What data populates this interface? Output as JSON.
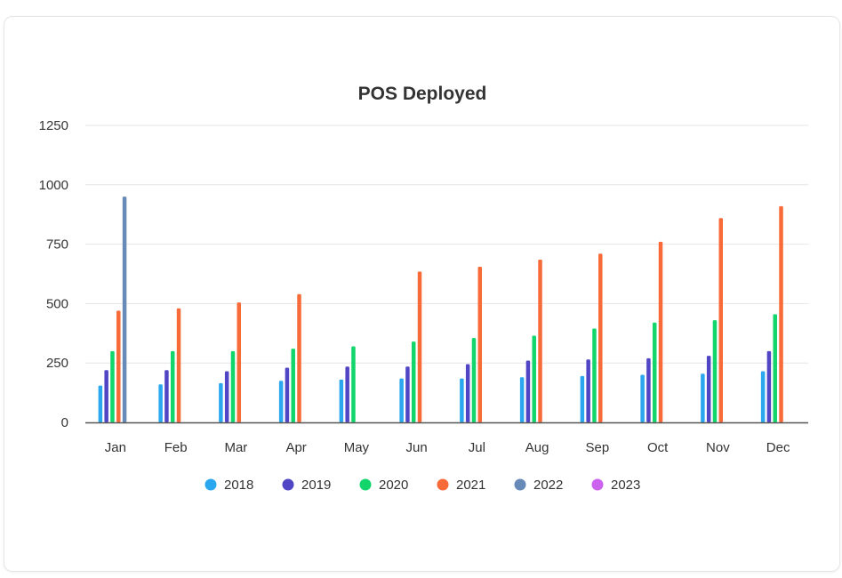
{
  "chart_data": {
    "type": "bar",
    "title": "POS Deployed",
    "xlabel": "",
    "ylabel": "",
    "ylim": [
      0,
      1250
    ],
    "yticks": [
      0,
      250,
      500,
      750,
      1000,
      1250
    ],
    "grid": true,
    "legend_position": "bottom",
    "categories": [
      "Jan",
      "Feb",
      "Mar",
      "Apr",
      "May",
      "Jun",
      "Jul",
      "Aug",
      "Sep",
      "Oct",
      "Nov",
      "Dec"
    ],
    "series": [
      {
        "name": "2018",
        "color": "#2aa7ee",
        "values": [
          155,
          160,
          165,
          175,
          180,
          185,
          185,
          190,
          195,
          200,
          205,
          215
        ]
      },
      {
        "name": "2019",
        "color": "#5046c5",
        "values": [
          220,
          220,
          215,
          230,
          235,
          235,
          245,
          260,
          265,
          270,
          280,
          300
        ]
      },
      {
        "name": "2020",
        "color": "#12d66b",
        "values": [
          300,
          300,
          300,
          310,
          320,
          340,
          355,
          365,
          395,
          420,
          430,
          455
        ]
      },
      {
        "name": "2021",
        "color": "#f86a38",
        "values": [
          470,
          480,
          505,
          540,
          null,
          635,
          655,
          685,
          710,
          760,
          860,
          910
        ]
      },
      {
        "name": "2022",
        "color": "#678ab8",
        "values": [
          950,
          null,
          null,
          null,
          null,
          null,
          null,
          null,
          null,
          null,
          null,
          null
        ]
      },
      {
        "name": "2023",
        "color": "#cc63ee",
        "values": [
          null,
          null,
          null,
          null,
          null,
          null,
          null,
          null,
          null,
          null,
          null,
          null
        ]
      }
    ]
  }
}
